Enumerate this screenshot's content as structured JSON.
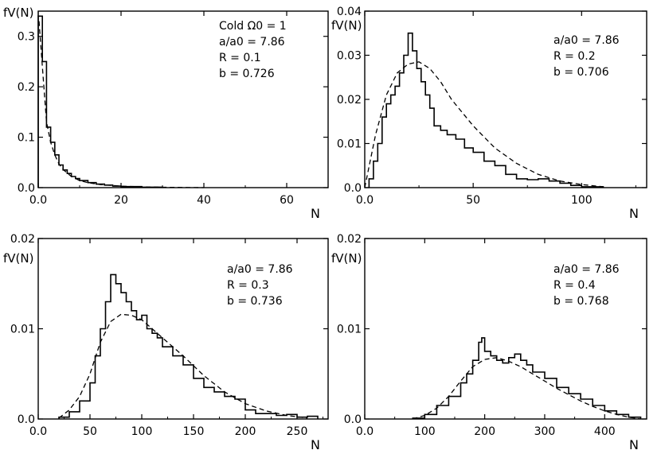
{
  "chart_data": [
    {
      "type": "line",
      "ylabel": "fV(N)",
      "xlabel": "N",
      "xlim": [
        0,
        70
      ],
      "ylim": [
        0,
        0.35
      ],
      "xticks": [
        0.0,
        20,
        40,
        60
      ],
      "xtick_labels": [
        "0.0",
        "20",
        "40",
        "60"
      ],
      "yticks": [
        0.0,
        0.1,
        0.2,
        0.3
      ],
      "ytick_labels": [
        "0.0",
        "0.1",
        "0.2",
        "0.3"
      ],
      "annotation": [
        "Cold Ω0 = 1",
        "a/a0 = 7.86",
        "R = 0.1",
        "b = 0.726"
      ],
      "series": [
        {
          "style": "histogram",
          "x": [
            0,
            1,
            2,
            3,
            4,
            5,
            6,
            7,
            8,
            9,
            10,
            12,
            14,
            16,
            18,
            20,
            25,
            30
          ],
          "values": [
            0.34,
            0.25,
            0.12,
            0.09,
            0.065,
            0.045,
            0.035,
            0.028,
            0.022,
            0.018,
            0.014,
            0.01,
            0.007,
            0.005,
            0.003,
            0.002,
            0.001,
            0.0
          ]
        },
        {
          "style": "dashed",
          "x": [
            0.2,
            1,
            2,
            3,
            4,
            5,
            6,
            8,
            10,
            12,
            15,
            20,
            25,
            30,
            40
          ],
          "values": [
            0.33,
            0.24,
            0.13,
            0.09,
            0.065,
            0.047,
            0.036,
            0.022,
            0.014,
            0.01,
            0.006,
            0.003,
            0.0015,
            0.0008,
            0.0
          ]
        }
      ]
    },
    {
      "type": "line",
      "ylabel": "fV(N)",
      "xlabel": "N",
      "xlim": [
        0,
        130
      ],
      "ylim": [
        0,
        0.04
      ],
      "xticks": [
        0.0,
        50,
        100
      ],
      "xtick_labels": [
        "0.0",
        "50",
        "100"
      ],
      "yticks": [
        0.0,
        0.01,
        0.02,
        0.03,
        0.04
      ],
      "ytick_labels": [
        "0.0",
        "0.01",
        "0.02",
        "0.03",
        "0.04"
      ],
      "annotation": [
        "a/a0 = 7.86",
        "R = 0.2",
        "b = 0.706"
      ],
      "series": [
        {
          "style": "histogram",
          "x": [
            2,
            4,
            6,
            8,
            10,
            12,
            14,
            16,
            18,
            20,
            22,
            24,
            26,
            28,
            30,
            32,
            35,
            38,
            42,
            46,
            50,
            55,
            60,
            65,
            70,
            75,
            80,
            85,
            90,
            95,
            100,
            110
          ],
          "values": [
            0.002,
            0.006,
            0.01,
            0.016,
            0.019,
            0.021,
            0.023,
            0.026,
            0.03,
            0.035,
            0.031,
            0.027,
            0.024,
            0.021,
            0.018,
            0.014,
            0.013,
            0.012,
            0.011,
            0.009,
            0.008,
            0.006,
            0.005,
            0.003,
            0.002,
            0.0018,
            0.002,
            0.0015,
            0.001,
            0.0005,
            0.0002,
            0.0
          ]
        },
        {
          "style": "dashed",
          "x": [
            0,
            5,
            10,
            15,
            20,
            25,
            30,
            35,
            40,
            50,
            60,
            70,
            80,
            90,
            100,
            110
          ],
          "values": [
            0.0,
            0.012,
            0.021,
            0.026,
            0.028,
            0.0285,
            0.027,
            0.024,
            0.02,
            0.014,
            0.009,
            0.0055,
            0.003,
            0.0015,
            0.0007,
            0.0002
          ]
        }
      ]
    },
    {
      "type": "line",
      "ylabel": "fV(N)",
      "xlabel": "N",
      "xlim": [
        0,
        280
      ],
      "ylim": [
        0,
        0.02
      ],
      "xticks": [
        0.0,
        50,
        100,
        150,
        200,
        250
      ],
      "xtick_labels": [
        "0.0",
        "50",
        "100",
        "150",
        "200",
        "250"
      ],
      "yticks": [
        0.0,
        0.01,
        0.02
      ],
      "ytick_labels": [
        "0.0",
        "0.01",
        "0.02"
      ],
      "annotation": [
        "a/a0 = 7.86",
        "R = 0.3",
        "b = 0.736"
      ],
      "series": [
        {
          "style": "histogram",
          "x": [
            20,
            30,
            40,
            50,
            55,
            60,
            65,
            70,
            75,
            80,
            85,
            90,
            95,
            100,
            105,
            110,
            115,
            120,
            130,
            140,
            150,
            160,
            170,
            180,
            190,
            200,
            210,
            220,
            230,
            240,
            250,
            260,
            270
          ],
          "values": [
            0.0002,
            0.0008,
            0.002,
            0.004,
            0.007,
            0.01,
            0.013,
            0.016,
            0.015,
            0.014,
            0.013,
            0.012,
            0.011,
            0.0115,
            0.01,
            0.0095,
            0.009,
            0.008,
            0.007,
            0.006,
            0.0045,
            0.0035,
            0.003,
            0.0025,
            0.0022,
            0.001,
            0.0006,
            0.0006,
            0.0004,
            0.0005,
            0.0002,
            0.0003,
            0.0
          ]
        },
        {
          "style": "dashed",
          "x": [
            20,
            30,
            40,
            50,
            60,
            70,
            80,
            90,
            100,
            110,
            120,
            140,
            160,
            180,
            200,
            220,
            240,
            260
          ],
          "values": [
            0.0001,
            0.001,
            0.0025,
            0.005,
            0.0085,
            0.0108,
            0.0116,
            0.0115,
            0.011,
            0.01,
            0.009,
            0.007,
            0.0048,
            0.003,
            0.0017,
            0.0009,
            0.0004,
            0.0001
          ]
        }
      ]
    },
    {
      "type": "line",
      "ylabel": "fV(N)",
      "xlabel": "N",
      "xlim": [
        0,
        470
      ],
      "ylim": [
        0,
        0.02
      ],
      "xticks": [
        0.0,
        100,
        200,
        300,
        400
      ],
      "xtick_labels": [
        "0.0",
        "100",
        "200",
        "300",
        "400"
      ],
      "yticks": [
        0.0,
        0.01,
        0.02
      ],
      "ytick_labels": [
        "0.0",
        "0.01",
        "0.02"
      ],
      "annotation": [
        "a/a0 = 7.86",
        "R = 0.4",
        "b = 0.768"
      ],
      "series": [
        {
          "style": "histogram",
          "x": [
            80,
            100,
            120,
            140,
            160,
            170,
            180,
            190,
            195,
            200,
            210,
            220,
            230,
            240,
            250,
            260,
            270,
            280,
            300,
            320,
            340,
            360,
            380,
            400,
            420,
            440,
            460
          ],
          "values": [
            0.0001,
            0.0005,
            0.0015,
            0.0025,
            0.004,
            0.005,
            0.0065,
            0.0085,
            0.009,
            0.0075,
            0.007,
            0.0065,
            0.0062,
            0.0068,
            0.0072,
            0.0065,
            0.006,
            0.0052,
            0.0045,
            0.0035,
            0.0028,
            0.0022,
            0.0015,
            0.0009,
            0.0005,
            0.0002,
            0.0
          ]
        },
        {
          "style": "dashed",
          "x": [
            80,
            100,
            120,
            140,
            160,
            180,
            200,
            220,
            240,
            260,
            280,
            300,
            320,
            340,
            360,
            380,
            400,
            420,
            440,
            460
          ],
          "values": [
            0.0,
            0.0004,
            0.0012,
            0.0025,
            0.0042,
            0.0058,
            0.0066,
            0.0068,
            0.0064,
            0.0058,
            0.005,
            0.0042,
            0.0034,
            0.0027,
            0.002,
            0.0014,
            0.0009,
            0.0005,
            0.0002,
            0.0
          ]
        }
      ]
    }
  ]
}
